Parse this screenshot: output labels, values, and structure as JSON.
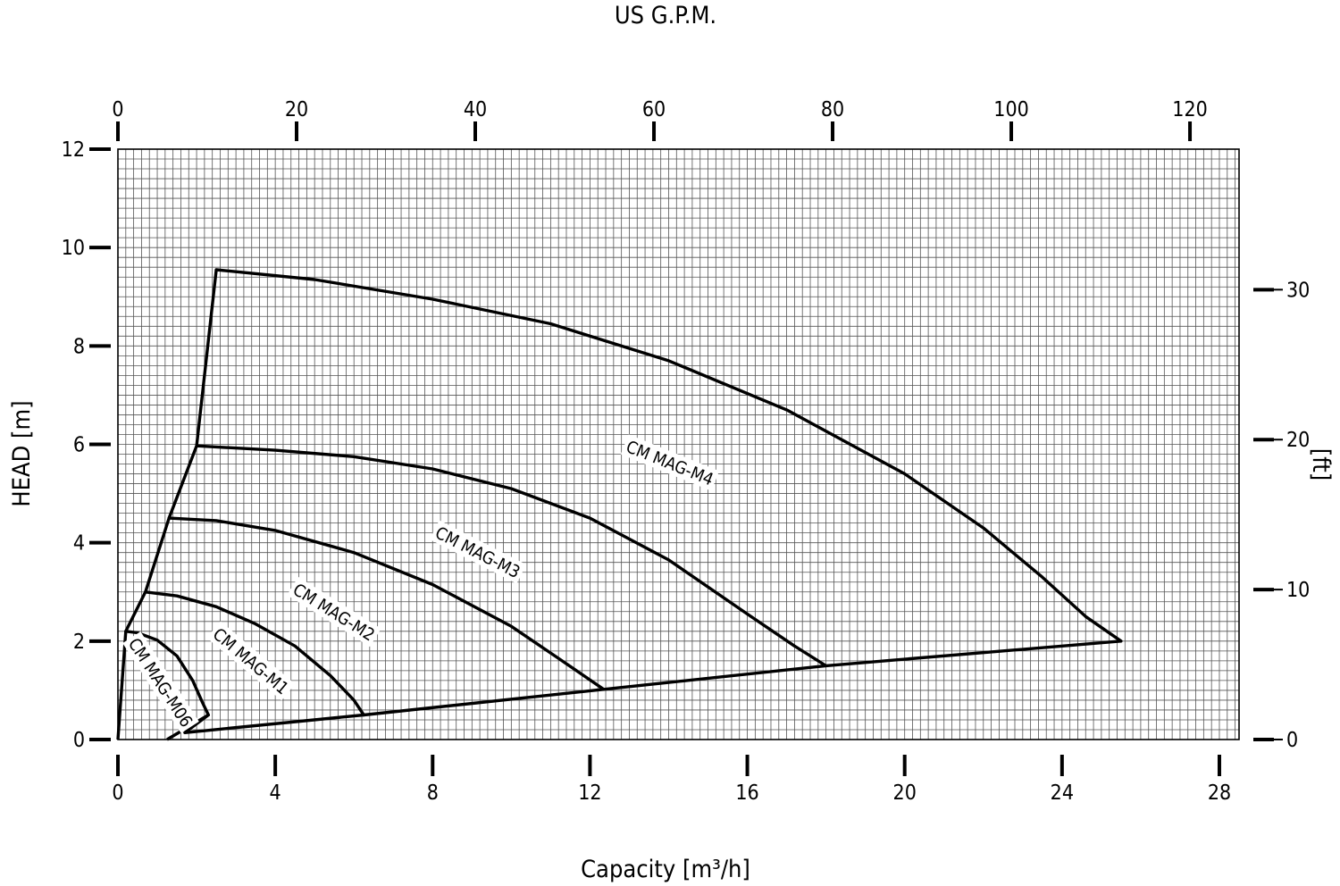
{
  "chart_data": {
    "type": "line",
    "title": "",
    "x_axis": {
      "label": "Capacity  [m³/h]",
      "min": 0,
      "max": 28.5,
      "ticks": [
        0,
        4,
        8,
        12,
        16,
        20,
        24,
        28
      ]
    },
    "x2_axis": {
      "label": "US G.P.M.",
      "ticks": [
        0,
        20,
        40,
        60,
        80,
        100,
        120
      ],
      "m3h_per_unit": 0.2271
    },
    "y_axis": {
      "label": "HEAD [m]",
      "min": 0,
      "max": 12,
      "ticks": [
        0,
        2,
        4,
        6,
        8,
        10,
        12
      ]
    },
    "y2_axis": {
      "label": "[ft]",
      "ticks": [
        0,
        10,
        20,
        30
      ],
      "m_per_unit": 0.3048
    },
    "grid": true,
    "series": [
      {
        "name": "CM MAG-M06",
        "points": [
          [
            0.2,
            2.2
          ],
          [
            0.5,
            2.17
          ],
          [
            1.0,
            2.02
          ],
          [
            1.5,
            1.7
          ],
          [
            1.9,
            1.2
          ],
          [
            2.15,
            0.75
          ],
          [
            2.3,
            0.5
          ]
        ]
      },
      {
        "name": "CM MAG-M1",
        "points": [
          [
            0.7,
            3.0
          ],
          [
            1.5,
            2.92
          ],
          [
            2.5,
            2.7
          ],
          [
            3.5,
            2.35
          ],
          [
            4.5,
            1.9
          ],
          [
            5.4,
            1.3
          ],
          [
            6.0,
            0.8
          ],
          [
            6.25,
            0.5
          ]
        ]
      },
      {
        "name": "CM MAG-M2",
        "points": [
          [
            1.3,
            4.5
          ],
          [
            2.5,
            4.45
          ],
          [
            4,
            4.25
          ],
          [
            6,
            3.8
          ],
          [
            8,
            3.15
          ],
          [
            10,
            2.3
          ],
          [
            11.2,
            1.65
          ],
          [
            12.35,
            1.02
          ]
        ]
      },
      {
        "name": "CM MAG-M3",
        "points": [
          [
            2.0,
            5.97
          ],
          [
            4,
            5.88
          ],
          [
            6,
            5.75
          ],
          [
            8,
            5.5
          ],
          [
            10,
            5.1
          ],
          [
            12,
            4.5
          ],
          [
            14,
            3.65
          ],
          [
            16,
            2.55
          ],
          [
            17.2,
            1.9
          ],
          [
            18.0,
            1.5
          ]
        ]
      },
      {
        "name": "CM MAG-M4",
        "points": [
          [
            2.5,
            9.55
          ],
          [
            5,
            9.35
          ],
          [
            8,
            8.95
          ],
          [
            11,
            8.45
          ],
          [
            14,
            7.7
          ],
          [
            17,
            6.7
          ],
          [
            20,
            5.4
          ],
          [
            22,
            4.3
          ],
          [
            23.5,
            3.3
          ],
          [
            24.6,
            2.5
          ],
          [
            25.5,
            2.0
          ]
        ]
      }
    ],
    "envelope": {
      "left_boundary": [
        [
          0,
          0
        ],
        [
          0.2,
          2.2
        ],
        [
          0.7,
          3.0
        ],
        [
          1.3,
          4.5
        ],
        [
          2.0,
          5.97
        ],
        [
          2.5,
          9.55
        ]
      ],
      "bottom_boundary": [
        [
          1.25,
          0
        ],
        [
          2.3,
          0.5
        ],
        [
          1.7,
          0.14
        ],
        [
          6.25,
          0.5
        ],
        [
          12.35,
          1.02
        ],
        [
          18.0,
          1.5
        ],
        [
          25.5,
          2.0
        ]
      ]
    }
  }
}
